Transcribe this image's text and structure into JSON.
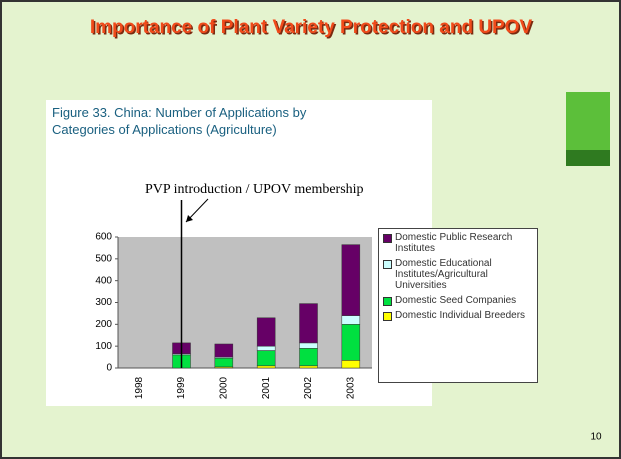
{
  "slide": {
    "title": "Importance of Plant Variety Protection and UPOV",
    "page_number": "10"
  },
  "chart_data": {
    "type": "stacked_bar",
    "title": "Figure 33. China: Number of Applications by Categories of Applications (Agriculture)",
    "annotation": "PVP introduction / UPOV membership",
    "categories": [
      "1998",
      "1999",
      "2000",
      "2001",
      "2002",
      "2003"
    ],
    "series": [
      {
        "name": "Domestic Individual Breeders",
        "color": "#ffff00",
        "values": [
          0,
          0,
          5,
          10,
          10,
          35
        ]
      },
      {
        "name": "Domestic Seed Companies",
        "color": "#00e040",
        "values": [
          0,
          60,
          40,
          70,
          80,
          165
        ]
      },
      {
        "name": "Domestic Educational Institutes/Agricultural Universities",
        "color": "#ccffff",
        "values": [
          0,
          5,
          5,
          20,
          25,
          40
        ]
      },
      {
        "name": "Domestic Public Research Institutes",
        "color": "#660066",
        "values": [
          0,
          50,
          60,
          130,
          180,
          325
        ]
      }
    ],
    "ylim": [
      0,
      600
    ],
    "yticks": [
      0,
      100,
      200,
      300,
      400,
      500,
      600
    ],
    "grid": false
  }
}
